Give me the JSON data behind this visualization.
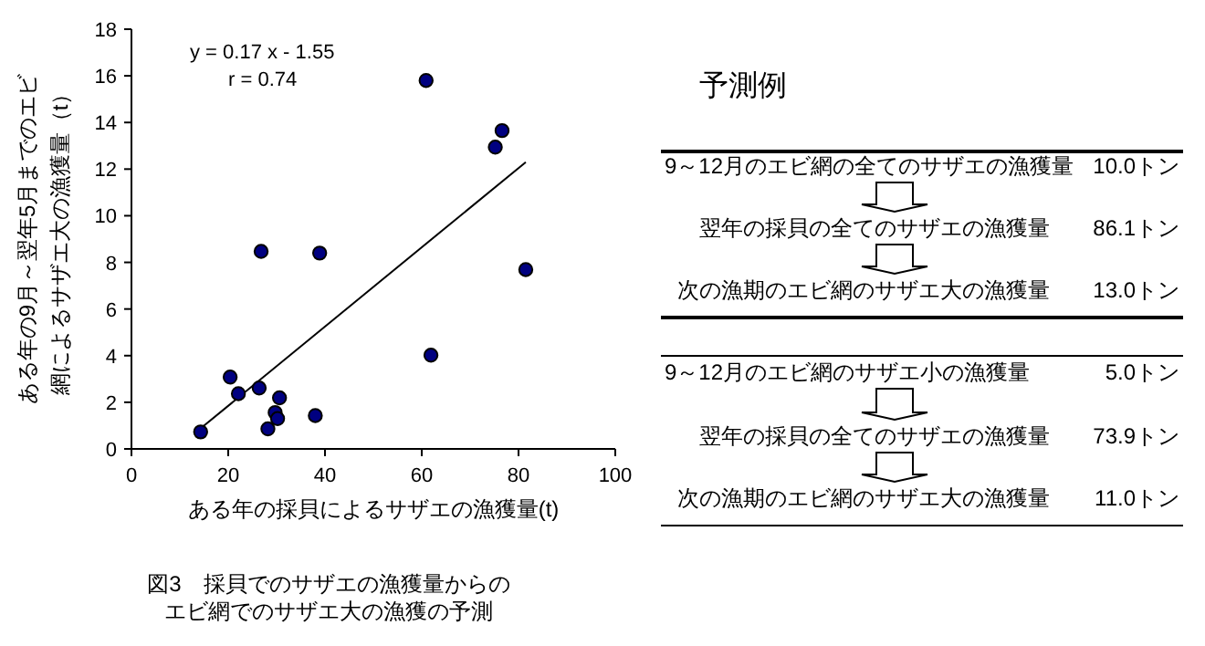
{
  "chart_data": [
    {
      "type": "scatter",
      "xlabel": "ある年の採貝によるサザエの漁獲量(t)",
      "ylabel": "ある年の9月～翌年5月までのエビ網によるサザエ大の漁獲量（t）",
      "xlim": [
        0,
        100
      ],
      "ylim": [
        0,
        18
      ],
      "xticks": [
        0,
        20,
        40,
        60,
        80,
        100
      ],
      "yticks": [
        0,
        2,
        4,
        6,
        8,
        10,
        12,
        14,
        16,
        18
      ],
      "grid": false,
      "series": [
        {
          "type": "scatter",
          "marker": "circle",
          "color": "#000080",
          "x": [
            14.3,
            20.4,
            22.1,
            26.4,
            26.8,
            28.2,
            29.7,
            30.2,
            30.6,
            38.0,
            38.9,
            60.9,
            61.9,
            75.2,
            76.6,
            81.5
          ],
          "values": [
            0.73,
            3.08,
            2.37,
            2.61,
            8.47,
            0.86,
            1.56,
            1.3,
            2.19,
            1.43,
            8.4,
            15.8,
            4.02,
            12.94,
            13.65,
            7.69
          ]
        },
        {
          "type": "line",
          "marker": "none",
          "color": "#000000",
          "x": [
            14.3,
            81.5
          ],
          "values": [
            0.88,
            12.3
          ]
        }
      ],
      "annotations": [
        "y = 0.17 x - 1.55",
        "r = 0.74",
        "図3　採貝でのサザエの漁獲量からの",
        "エビ網でのサザエ大の漁獲の予測"
      ]
    },
    {
      "type": "other",
      "title": "予測例",
      "annotations": [
        "9～12月のエビ網の全てのサザエの漁獲量",
        "10.0トン",
        "翌年の採貝の全てのサザエの漁獲量",
        "86.1トン",
        "次の漁期のエビ網のサザエ大の漁獲量",
        "13.0トン",
        "9～12月のエビ網のサザエ小の漁獲量",
        "5.0トン",
        "翌年の採貝の全てのサザエの漁獲量",
        "73.9トン",
        "次の漁期のエビ網のサザエ大の漁獲量",
        "11.0トン"
      ]
    }
  ]
}
